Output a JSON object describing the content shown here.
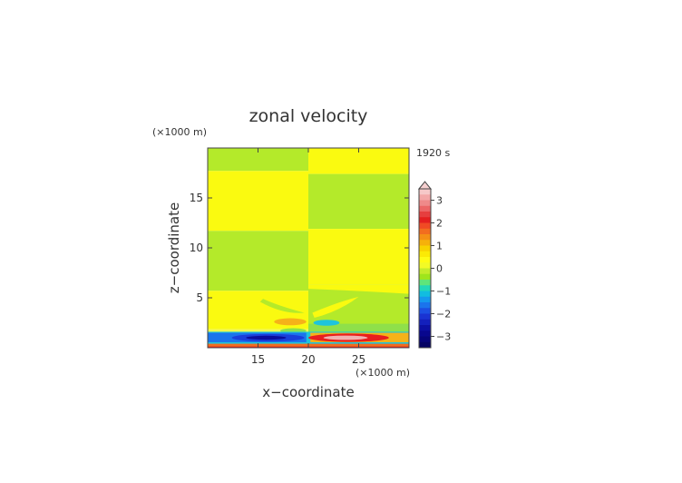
{
  "chart_data": {
    "type": "heatmap",
    "title": "zonal velocity",
    "time_label": "1920 s",
    "xlabel": "x−coordinate",
    "ylabel": "z−coordinate",
    "x_unit": "(×1000 m)",
    "y_unit": "(×1000 m)",
    "x_range": [
      10,
      30
    ],
    "y_range": [
      0,
      20
    ],
    "x_ticks": [
      15,
      20,
      25
    ],
    "x_tick_labels": [
      "15",
      "20",
      "25"
    ],
    "y_ticks": [
      5,
      10,
      15
    ],
    "y_tick_labels": [
      "5",
      "10",
      "15"
    ],
    "colorbar": {
      "levels": [
        3.5,
        3.25,
        3.0,
        2.75,
        2.5,
        2.25,
        2.0,
        1.75,
        1.5,
        1.25,
        1.0,
        0.75,
        0.5,
        0.25,
        0.0,
        -0.25,
        -0.5,
        -0.75,
        -1.0,
        -1.25,
        -1.5,
        -1.75,
        -2.0,
        -2.25,
        -2.5,
        -2.75,
        -3.0,
        -3.25,
        -3.5
      ],
      "colors": [
        "#f6c8c8",
        "#f3a7a7",
        "#ef8a8a",
        "#ec6666",
        "#e63f3f",
        "#e41f1f",
        "#f04a24",
        "#f26d1f",
        "#f49015",
        "#f6b10a",
        "#f8d300",
        "#fbea05",
        "#fefc14",
        "#f2fa26",
        "#c3ec2a",
        "#9fe51c",
        "#5ee57a",
        "#22d8b8",
        "#11bde0",
        "#1599ee",
        "#1b74ec",
        "#1c4fe2",
        "#1a33d2",
        "#1320bc",
        "#0c10a3",
        "#08078e",
        "#06047a",
        "#050364"
      ],
      "tick_values": [
        3,
        2,
        1,
        0,
        -1,
        -2,
        -3
      ],
      "tick_labels": [
        "3",
        "2",
        "1",
        "0",
        "−1",
        "−2",
        "−3"
      ],
      "extend": "max"
    },
    "field_description_values": {
      "background_band_levels": [
        0.0,
        0.5
      ],
      "low_level_jet": {
        "west_min": -3.5,
        "east_max": 3.5,
        "z_center": 1.0
      }
    }
  }
}
